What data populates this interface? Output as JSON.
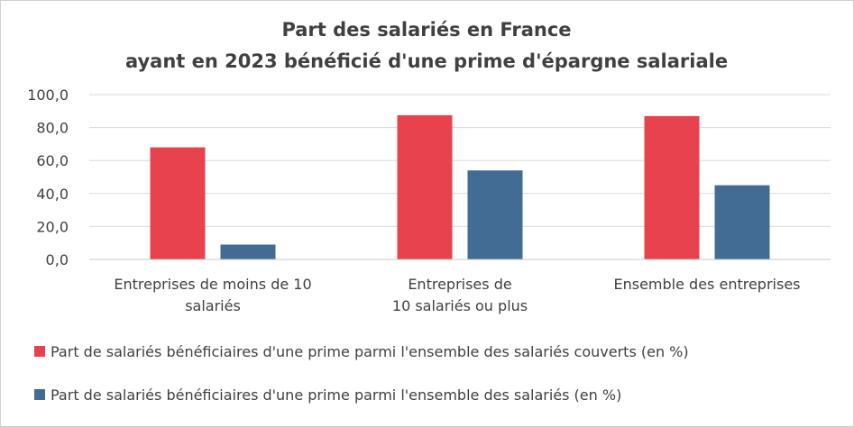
{
  "chart_data": {
    "type": "bar",
    "title": [
      "Part des salariés en France",
      "ayant en 2023 bénéficié d'une prime d'épargne salariale"
    ],
    "categories": [
      [
        "Entreprises de moins de 10",
        "salariés"
      ],
      [
        "Entreprises de",
        "10 salariés ou plus"
      ],
      [
        "Ensemble des entreprises"
      ]
    ],
    "series": [
      {
        "name": "Part de salariés bénéficiaires d'une prime parmi l'ensemble des salariés couverts (en %)",
        "color": "#e8434d",
        "values": [
          68.0,
          87.5,
          87.0
        ]
      },
      {
        "name": "Part de salariés bénéficiaires d'une prime parmi l'ensemble des salariés (en %)",
        "color": "#426c93",
        "values": [
          9.0,
          54.0,
          45.0
        ]
      }
    ],
    "ylim": [
      0,
      100
    ],
    "yticks": [
      "0,0",
      "20,0",
      "40,0",
      "60,0",
      "80,0",
      "100,0"
    ],
    "ytick_values": [
      0,
      20,
      40,
      60,
      80,
      100
    ],
    "grid": true,
    "legend_position": "bottom"
  }
}
